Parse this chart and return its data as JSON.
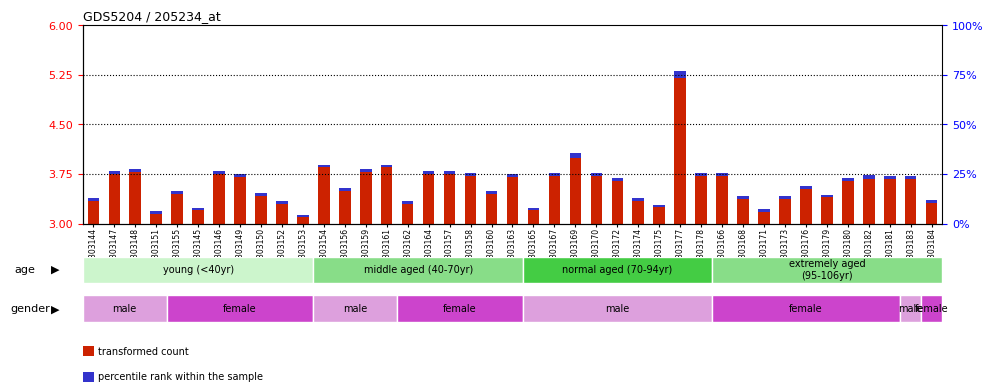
{
  "title": "GDS5204 / 205234_at",
  "samples": [
    "GSM1303144",
    "GSM1303147",
    "GSM1303148",
    "GSM1303151",
    "GSM1303155",
    "GSM1303145",
    "GSM1303146",
    "GSM1303149",
    "GSM1303150",
    "GSM1303152",
    "GSM1303153",
    "GSM1303154",
    "GSM1303156",
    "GSM1303159",
    "GSM1303161",
    "GSM1303162",
    "GSM1303164",
    "GSM1303157",
    "GSM1303158",
    "GSM1303160",
    "GSM1303163",
    "GSM1303165",
    "GSM1303167",
    "GSM1303169",
    "GSM1303170",
    "GSM1303172",
    "GSM1303174",
    "GSM1303175",
    "GSM1303177",
    "GSM1303178",
    "GSM1303166",
    "GSM1303168",
    "GSM1303171",
    "GSM1303173",
    "GSM1303176",
    "GSM1303179",
    "GSM1303180",
    "GSM1303182",
    "GSM1303181",
    "GSM1303183",
    "GSM1303184"
  ],
  "red_values": [
    3.35,
    3.75,
    3.78,
    3.15,
    3.45,
    3.2,
    3.75,
    3.7,
    3.42,
    3.3,
    3.1,
    3.85,
    3.5,
    3.78,
    3.85,
    3.3,
    3.75,
    3.75,
    3.72,
    3.45,
    3.7,
    3.2,
    3.72,
    4.0,
    3.72,
    3.65,
    3.35,
    3.25,
    5.2,
    3.72,
    3.72,
    3.38,
    3.18,
    3.38,
    3.52,
    3.4,
    3.65,
    3.68,
    3.68,
    3.68,
    3.32
  ],
  "blue_heights": [
    0.045,
    0.045,
    0.045,
    0.04,
    0.04,
    0.038,
    0.045,
    0.045,
    0.043,
    0.04,
    0.03,
    0.045,
    0.042,
    0.045,
    0.045,
    0.04,
    0.045,
    0.045,
    0.044,
    0.042,
    0.045,
    0.032,
    0.045,
    0.075,
    0.052,
    0.048,
    0.04,
    0.034,
    0.115,
    0.052,
    0.048,
    0.042,
    0.036,
    0.042,
    0.044,
    0.04,
    0.048,
    0.052,
    0.048,
    0.048,
    0.038
  ],
  "ylim_left": [
    3.0,
    6.0
  ],
  "ylim_right": [
    0,
    100
  ],
  "yticks_left": [
    3.0,
    3.75,
    4.5,
    5.25,
    6.0
  ],
  "yticks_right": [
    0,
    25,
    50,
    75,
    100
  ],
  "hlines": [
    3.75,
    4.5,
    5.25
  ],
  "age_groups": [
    {
      "label": "young (<40yr)",
      "start": 0,
      "end": 11,
      "color": "#ccf5cc"
    },
    {
      "label": "middle aged (40-70yr)",
      "start": 11,
      "end": 21,
      "color": "#88dd88"
    },
    {
      "label": "normal aged (70-94yr)",
      "start": 21,
      "end": 30,
      "color": "#44cc44"
    },
    {
      "label": "extremely aged\n(95-106yr)",
      "start": 30,
      "end": 41,
      "color": "#88dd88"
    }
  ],
  "gender_groups": [
    {
      "label": "male",
      "start": 0,
      "end": 4,
      "color": "#dda0dd"
    },
    {
      "label": "female",
      "start": 4,
      "end": 11,
      "color": "#cc44cc"
    },
    {
      "label": "male",
      "start": 11,
      "end": 15,
      "color": "#dda0dd"
    },
    {
      "label": "female",
      "start": 15,
      "end": 21,
      "color": "#cc44cc"
    },
    {
      "label": "male",
      "start": 21,
      "end": 30,
      "color": "#dda0dd"
    },
    {
      "label": "female",
      "start": 30,
      "end": 39,
      "color": "#cc44cc"
    },
    {
      "label": "male",
      "start": 39,
      "end": 40,
      "color": "#dda0dd"
    },
    {
      "label": "female",
      "start": 40,
      "end": 41,
      "color": "#cc44cc"
    }
  ],
  "bar_width": 0.55,
  "red_color": "#cc2200",
  "blue_color": "#3333cc",
  "base_value": 3.0,
  "legend_items": [
    {
      "label": "transformed count",
      "color": "#cc2200"
    },
    {
      "label": "percentile rank within the sample",
      "color": "#3333cc"
    }
  ]
}
